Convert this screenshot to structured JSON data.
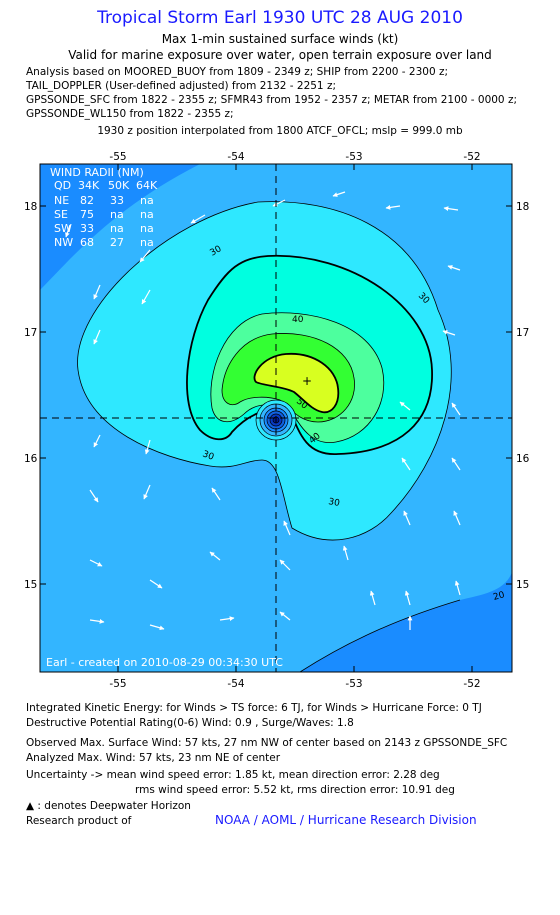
{
  "title": "Tropical Storm Earl 1930 UTC 28 AUG 2010",
  "subtitle1": "Max 1-min sustained surface winds (kt)",
  "subtitle2": "Valid for marine exposure over water, open terrain exposure over land",
  "analysis_lines": [
    "Analysis based on MOORED_BUOY from 1809 - 2349 z; SHIP from 2200 - 2300 z;",
    "TAIL_DOPPLER (User-defined adjusted) from 2132 - 2251 z;",
    "GPSSONDE_SFC from 1822 - 2355 z; SFMR43 from 1952 - 2357 z; METAR from 2100 - 0000 z;",
    "GPSSONDE_WL150 from 1822 - 2355 z;"
  ],
  "position_note": "1930 z position interpolated from 1800 ATCF_OFCL; mslp = 999.0 mb",
  "map": {
    "lon_ticks": [
      "-55",
      "-54",
      "-53",
      "-52"
    ],
    "lat_ticks": [
      "18",
      "17",
      "16",
      "15"
    ],
    "contour_labels": [
      "30",
      "30",
      "40",
      "50",
      "40",
      "30",
      "30",
      "20"
    ],
    "credit": "Earl - created on 2010-08-29 00:34:30 UTC",
    "colors": {
      "outer": "#1a8cff",
      "band1": "#33b5ff",
      "band2": "#2ee8ff",
      "band3": "#00ffe0",
      "band4": "#4dff9e",
      "band5": "#33ff33",
      "band6": "#d8ff20"
    },
    "wind_radii": {
      "header": "WIND RADII (NM)",
      "columns": [
        "QD",
        "34K",
        "50K",
        "64K"
      ],
      "rows": [
        [
          "NE",
          "82",
          "33",
          "na"
        ],
        [
          "SE",
          "75",
          "na",
          "na"
        ],
        [
          "SW",
          "33",
          "na",
          "na"
        ],
        [
          "NW",
          "68",
          "27",
          "na"
        ]
      ]
    }
  },
  "footer": {
    "ike": "Integrated Kinetic Energy:  for Winds > TS force: 6 TJ,  for Winds > Hurricane Force: 0 TJ",
    "dpr": "Destructive Potential Rating(0-6)   Wind: 0.9 , Surge/Waves: 1.8",
    "observed": "Observed Max. Surface Wind: 57 kts, 27 nm NW of center based on 2143 z GPSSONDE_SFC",
    "analyzed": "Analyzed Max. Wind: 57 kts, 23 nm NE of center",
    "uncertainty1": "Uncertainty -> mean wind speed error: 1.85 kt,   mean direction error: 2.28 deg",
    "uncertainty2": "rms wind speed error: 5.52 kt,   rms direction error: 10.91 deg",
    "deepwater_symbol": "▲",
    "deepwater": " : denotes Deepwater Horizon",
    "research": "Research product of",
    "noaa": "NOAA / AOML / Hurricane Research Division"
  }
}
